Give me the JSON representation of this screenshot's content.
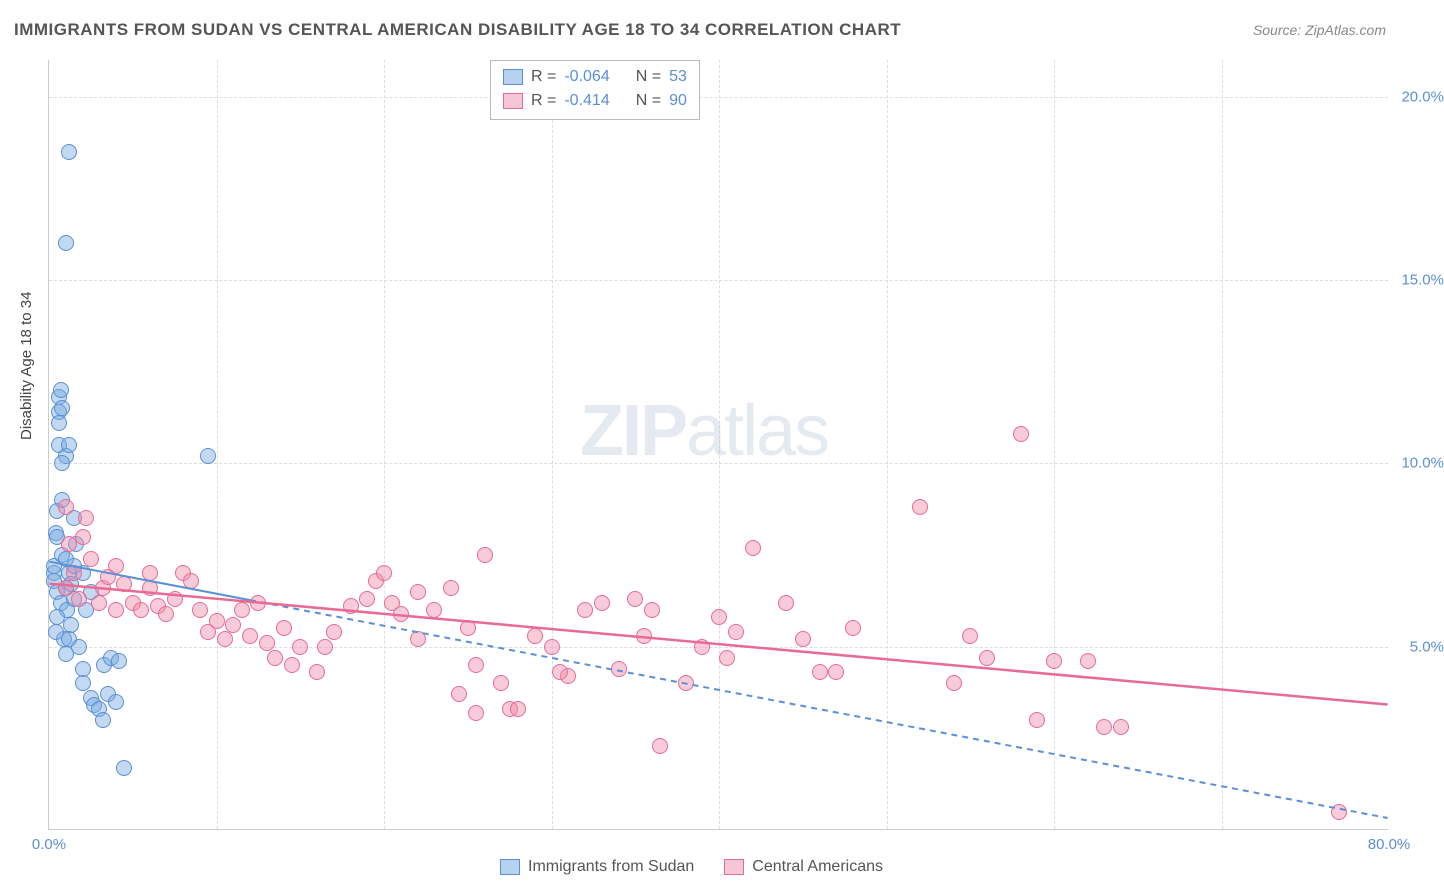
{
  "title": "IMMIGRANTS FROM SUDAN VS CENTRAL AMERICAN DISABILITY AGE 18 TO 34 CORRELATION CHART",
  "source_label": "Source:",
  "source_name": "ZipAtlas.com",
  "ylabel": "Disability Age 18 to 34",
  "watermark_a": "ZIP",
  "watermark_b": "atlas",
  "chart": {
    "type": "scatter",
    "xlim": [
      0,
      80
    ],
    "ylim": [
      0,
      21
    ],
    "xticks": [
      0,
      80
    ],
    "xtick_labels": [
      "0.0%",
      "80.0%"
    ],
    "yticks": [
      5,
      10,
      15,
      20
    ],
    "ytick_labels": [
      "5.0%",
      "10.0%",
      "15.0%",
      "20.0%"
    ],
    "vgrid_at": [
      10,
      20,
      30,
      40,
      50,
      60,
      70
    ],
    "background_color": "#ffffff",
    "grid_color": "#dddddd",
    "axis_color": "#cccccc",
    "tick_text_color": "#5b8fd6",
    "label_fontsize": 15,
    "title_fontsize": 17,
    "marker_size": 16,
    "series": [
      {
        "name": "Immigrants from Sudan",
        "fill_color": "rgba(120,170,225,0.45)",
        "stroke_color": "#5b8fd6",
        "swatch_fill": "#b7d2f1",
        "swatch_border": "#5b8fd6",
        "R": "-0.064",
        "N": "53",
        "trend": {
          "x1": 0,
          "y1": 7.3,
          "x2": 80,
          "y2": 0.3,
          "color": "#5b8fd6",
          "width": 2,
          "dash": "6,5",
          "solid_until_x": 12
        },
        "points": [
          [
            0.3,
            7.0
          ],
          [
            0.3,
            7.2
          ],
          [
            0.3,
            6.8
          ],
          [
            0.4,
            8.1
          ],
          [
            0.5,
            8.7
          ],
          [
            0.5,
            8.0
          ],
          [
            0.5,
            6.5
          ],
          [
            0.7,
            6.2
          ],
          [
            0.8,
            9.0
          ],
          [
            0.8,
            7.5
          ],
          [
            0.9,
            5.2
          ],
          [
            1.0,
            6.6
          ],
          [
            1.0,
            7.4
          ],
          [
            1.1,
            6.0
          ],
          [
            1.2,
            7.0
          ],
          [
            1.3,
            6.7
          ],
          [
            1.3,
            5.6
          ],
          [
            1.5,
            6.3
          ],
          [
            1.5,
            8.5
          ],
          [
            1.6,
            7.8
          ],
          [
            1.8,
            5.0
          ],
          [
            2.0,
            4.4
          ],
          [
            2.0,
            4.0
          ],
          [
            2.5,
            3.6
          ],
          [
            2.7,
            3.4
          ],
          [
            3.0,
            3.3
          ],
          [
            3.2,
            3.0
          ],
          [
            3.3,
            4.5
          ],
          [
            3.5,
            3.7
          ],
          [
            3.7,
            4.7
          ],
          [
            4.0,
            3.5
          ],
          [
            4.2,
            4.6
          ],
          [
            4.5,
            1.7
          ],
          [
            0.6,
            10.5
          ],
          [
            0.6,
            11.4
          ],
          [
            0.6,
            11.8
          ],
          [
            0.7,
            12.0
          ],
          [
            1.0,
            10.2
          ],
          [
            1.2,
            10.5
          ],
          [
            0.6,
            11.1
          ],
          [
            0.8,
            10.0
          ],
          [
            0.8,
            11.5
          ],
          [
            1.0,
            16.0
          ],
          [
            1.2,
            18.5
          ],
          [
            9.5,
            10.2
          ],
          [
            2.0,
            7.0
          ],
          [
            2.2,
            6.0
          ],
          [
            2.5,
            6.5
          ],
          [
            1.5,
            7.2
          ],
          [
            0.4,
            5.4
          ],
          [
            0.5,
            5.8
          ],
          [
            1.0,
            4.8
          ],
          [
            1.2,
            5.2
          ]
        ]
      },
      {
        "name": "Central Americans",
        "fill_color": "rgba(240,140,170,0.45)",
        "stroke_color": "#e86b94",
        "swatch_fill": "#f7c6d5",
        "swatch_border": "#e86b94",
        "R": "-0.414",
        "N": "90",
        "trend": {
          "x1": 0,
          "y1": 6.7,
          "x2": 80,
          "y2": 3.4,
          "color": "#e86b94",
          "width": 2.5,
          "dash": null
        },
        "points": [
          [
            1.0,
            6.6
          ],
          [
            1.5,
            7.0
          ],
          [
            1.8,
            6.3
          ],
          [
            2.0,
            8.0
          ],
          [
            2.2,
            8.5
          ],
          [
            2.5,
            7.4
          ],
          [
            3.0,
            6.2
          ],
          [
            3.2,
            6.6
          ],
          [
            3.5,
            6.9
          ],
          [
            4.0,
            6.0
          ],
          [
            4.5,
            6.7
          ],
          [
            5.0,
            6.2
          ],
          [
            5.5,
            6.0
          ],
          [
            6.0,
            6.6
          ],
          [
            6.5,
            6.1
          ],
          [
            7.0,
            5.9
          ],
          [
            7.5,
            6.3
          ],
          [
            8.0,
            7.0
          ],
          [
            8.5,
            6.8
          ],
          [
            9.0,
            6.0
          ],
          [
            9.5,
            5.4
          ],
          [
            10.0,
            5.7
          ],
          [
            10.5,
            5.2
          ],
          [
            11.0,
            5.6
          ],
          [
            11.5,
            6.0
          ],
          [
            12.0,
            5.3
          ],
          [
            13.0,
            5.1
          ],
          [
            13.5,
            4.7
          ],
          [
            14.0,
            5.5
          ],
          [
            14.5,
            4.5
          ],
          [
            15.0,
            5.0
          ],
          [
            16.0,
            4.3
          ],
          [
            16.5,
            5.0
          ],
          [
            17.0,
            5.4
          ],
          [
            18.0,
            6.1
          ],
          [
            19.0,
            6.3
          ],
          [
            19.5,
            6.8
          ],
          [
            20.0,
            7.0
          ],
          [
            20.5,
            6.2
          ],
          [
            21.0,
            5.9
          ],
          [
            22.0,
            5.2
          ],
          [
            23.0,
            6.0
          ],
          [
            24.0,
            6.6
          ],
          [
            25.0,
            5.5
          ],
          [
            25.5,
            4.5
          ],
          [
            26.0,
            7.5
          ],
          [
            27.0,
            4.0
          ],
          [
            27.5,
            3.3
          ],
          [
            28.0,
            3.3
          ],
          [
            29.0,
            5.3
          ],
          [
            30.0,
            5.0
          ],
          [
            31.0,
            4.2
          ],
          [
            32.0,
            6.0
          ],
          [
            33.0,
            6.2
          ],
          [
            34.0,
            4.4
          ],
          [
            35.0,
            6.3
          ],
          [
            35.5,
            5.3
          ],
          [
            36.0,
            6.0
          ],
          [
            36.5,
            2.3
          ],
          [
            38.0,
            4.0
          ],
          [
            39.0,
            5.0
          ],
          [
            40.0,
            5.8
          ],
          [
            40.5,
            4.7
          ],
          [
            41.0,
            5.4
          ],
          [
            42.0,
            7.7
          ],
          [
            44.0,
            6.2
          ],
          [
            45.0,
            5.2
          ],
          [
            46.0,
            4.3
          ],
          [
            47.0,
            4.3
          ],
          [
            48.0,
            5.5
          ],
          [
            52.0,
            8.8
          ],
          [
            54.0,
            4.0
          ],
          [
            55.0,
            5.3
          ],
          [
            56.0,
            4.7
          ],
          [
            58.0,
            10.8
          ],
          [
            59.0,
            3.0
          ],
          [
            60.0,
            4.6
          ],
          [
            62.0,
            4.6
          ],
          [
            63.0,
            2.8
          ],
          [
            64.0,
            2.8
          ],
          [
            24.5,
            3.7
          ],
          [
            25.5,
            3.2
          ],
          [
            1.0,
            8.8
          ],
          [
            4.0,
            7.2
          ],
          [
            6.0,
            7.0
          ],
          [
            12.5,
            6.2
          ],
          [
            30.5,
            4.3
          ],
          [
            22.0,
            6.5
          ],
          [
            77.0,
            0.5
          ],
          [
            1.2,
            7.8
          ]
        ]
      }
    ]
  },
  "stat_legend": {
    "R_label": "R =",
    "N_label": "N ="
  },
  "bottom_legend_labels": [
    "Immigrants from Sudan",
    "Central Americans"
  ]
}
